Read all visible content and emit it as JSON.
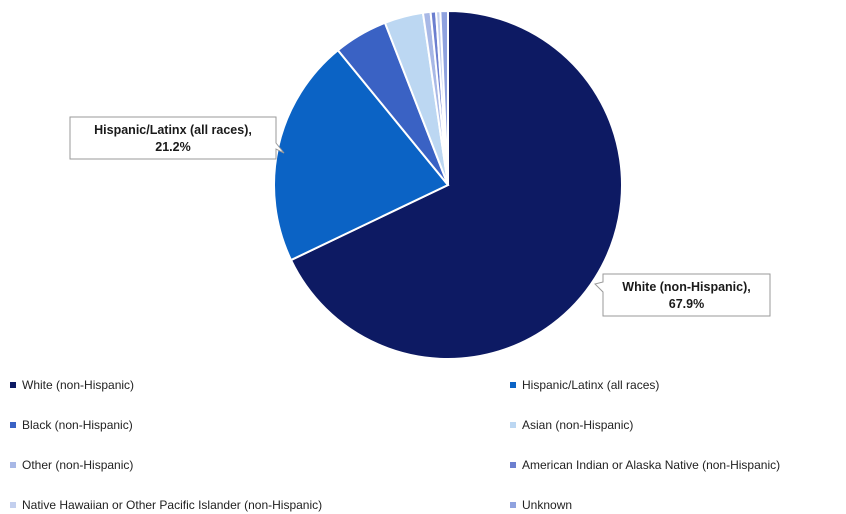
{
  "chart_data": {
    "type": "pie",
    "title": "",
    "start_angle_deg": 0,
    "direction": "clockwise",
    "slices": [
      {
        "label": "White (non-Hispanic)",
        "value": 67.9,
        "color": "#0d1a63",
        "data_label": "White (non-Hispanic),",
        "data_value": "67.9%"
      },
      {
        "label": "Hispanic/Latinx (all races)",
        "value": 21.2,
        "color": "#0b63c5",
        "data_label": "Hispanic/Latinx (all races),",
        "data_value": "21.2%"
      },
      {
        "label": "Black (non-Hispanic)",
        "value": 5.0,
        "color": "#3a62c4",
        "data_label": "",
        "data_value": ""
      },
      {
        "label": "Asian (non-Hispanic)",
        "value": 3.6,
        "color": "#bcd7f2",
        "data_label": "",
        "data_value": ""
      },
      {
        "label": "Other (non-Hispanic)",
        "value": 0.7,
        "color": "#a8b8e6",
        "data_label": "",
        "data_value": ""
      },
      {
        "label": "American Indian or Alaska Native (non-Hispanic)",
        "value": 0.5,
        "color": "#6c7fcf",
        "data_label": "",
        "data_value": ""
      },
      {
        "label": "Native Hawaiian or Other Pacific Islander (non-Hispanic)",
        "value": 0.4,
        "color": "#c3cfee",
        "data_label": "",
        "data_value": ""
      },
      {
        "label": "Unknown",
        "value": 0.7,
        "color": "#8fa2df",
        "data_label": "",
        "data_value": ""
      }
    ],
    "legend_position": "bottom"
  }
}
